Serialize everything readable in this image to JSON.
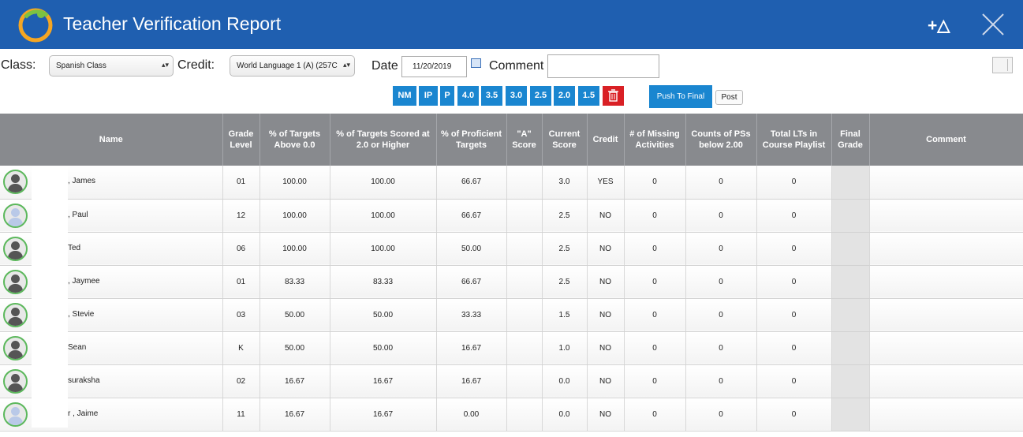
{
  "header": {
    "title": "Teacher Verification Report",
    "add_icon_text": "+△"
  },
  "controls": {
    "class_label": "Class:",
    "class_value": "Spanish Class",
    "credit_label": "Credit:",
    "credit_value": "World Language 1 (A) (257C",
    "date_label": "Date",
    "date_value": "11/20/2019",
    "comment_label": "Comment",
    "comment_value": ""
  },
  "grade_buttons": [
    "NM",
    "IP",
    "P",
    "4.0",
    "3.5",
    "3.0",
    "2.5",
    "2.0",
    "1.5"
  ],
  "actions": {
    "push_label": "Push To Final",
    "post_label": "Post"
  },
  "table": {
    "columns": [
      "Name",
      "Grade Level",
      "% of Targets Above 0.0",
      "% of Targets Scored at 2.0 or Higher",
      "% of Proficient Targets",
      "\"A\" Score",
      "Current Score",
      "Credit",
      "# of Missing Activities",
      "Counts of PSs below 2.00",
      "Total LTs in Course Playlist",
      "Final Grade",
      "Comment"
    ],
    "rows": [
      {
        "name": ", James",
        "avatar": "dark",
        "grade": "01",
        "above0": "100.00",
        "scored2": "100.00",
        "proficient": "66.67",
        "ascore": "",
        "current": "3.0",
        "credit": "YES",
        "missing": "0",
        "below2": "0",
        "total_lts": "0",
        "final": "",
        "comment": ""
      },
      {
        "name": ", Paul",
        "avatar": "light",
        "grade": "12",
        "above0": "100.00",
        "scored2": "100.00",
        "proficient": "66.67",
        "ascore": "",
        "current": "2.5",
        "credit": "NO",
        "missing": "0",
        "below2": "0",
        "total_lts": "0",
        "final": "",
        "comment": ""
      },
      {
        "name": "Ted",
        "avatar": "dark",
        "grade": "06",
        "above0": "100.00",
        "scored2": "100.00",
        "proficient": "50.00",
        "ascore": "",
        "current": "2.5",
        "credit": "NO",
        "missing": "0",
        "below2": "0",
        "total_lts": "0",
        "final": "",
        "comment": ""
      },
      {
        "name": ", Jaymee",
        "avatar": "dark",
        "grade": "01",
        "above0": "83.33",
        "scored2": "83.33",
        "proficient": "66.67",
        "ascore": "",
        "current": "2.5",
        "credit": "NO",
        "missing": "0",
        "below2": "0",
        "total_lts": "0",
        "final": "",
        "comment": ""
      },
      {
        "name": ", Stevie",
        "avatar": "dark",
        "grade": "03",
        "above0": "50.00",
        "scored2": "50.00",
        "proficient": "33.33",
        "ascore": "",
        "current": "1.5",
        "credit": "NO",
        "missing": "0",
        "below2": "0",
        "total_lts": "0",
        "final": "",
        "comment": ""
      },
      {
        "name": "Sean",
        "avatar": "dark",
        "grade": "K",
        "above0": "50.00",
        "scored2": "50.00",
        "proficient": "16.67",
        "ascore": "",
        "current": "1.0",
        "credit": "NO",
        "missing": "0",
        "below2": "0",
        "total_lts": "0",
        "final": "",
        "comment": ""
      },
      {
        "name": "suraksha",
        "avatar": "dark",
        "grade": "02",
        "above0": "16.67",
        "scored2": "16.67",
        "proficient": "16.67",
        "ascore": "",
        "current": "0.0",
        "credit": "NO",
        "missing": "0",
        "below2": "0",
        "total_lts": "0",
        "final": "",
        "comment": ""
      },
      {
        "name": "r , Jaime",
        "avatar": "light",
        "grade": "11",
        "above0": "16.67",
        "scored2": "16.67",
        "proficient": "0.00",
        "ascore": "",
        "current": "0.0",
        "credit": "NO",
        "missing": "0",
        "below2": "0",
        "total_lts": "0",
        "final": "",
        "comment": ""
      }
    ]
  }
}
